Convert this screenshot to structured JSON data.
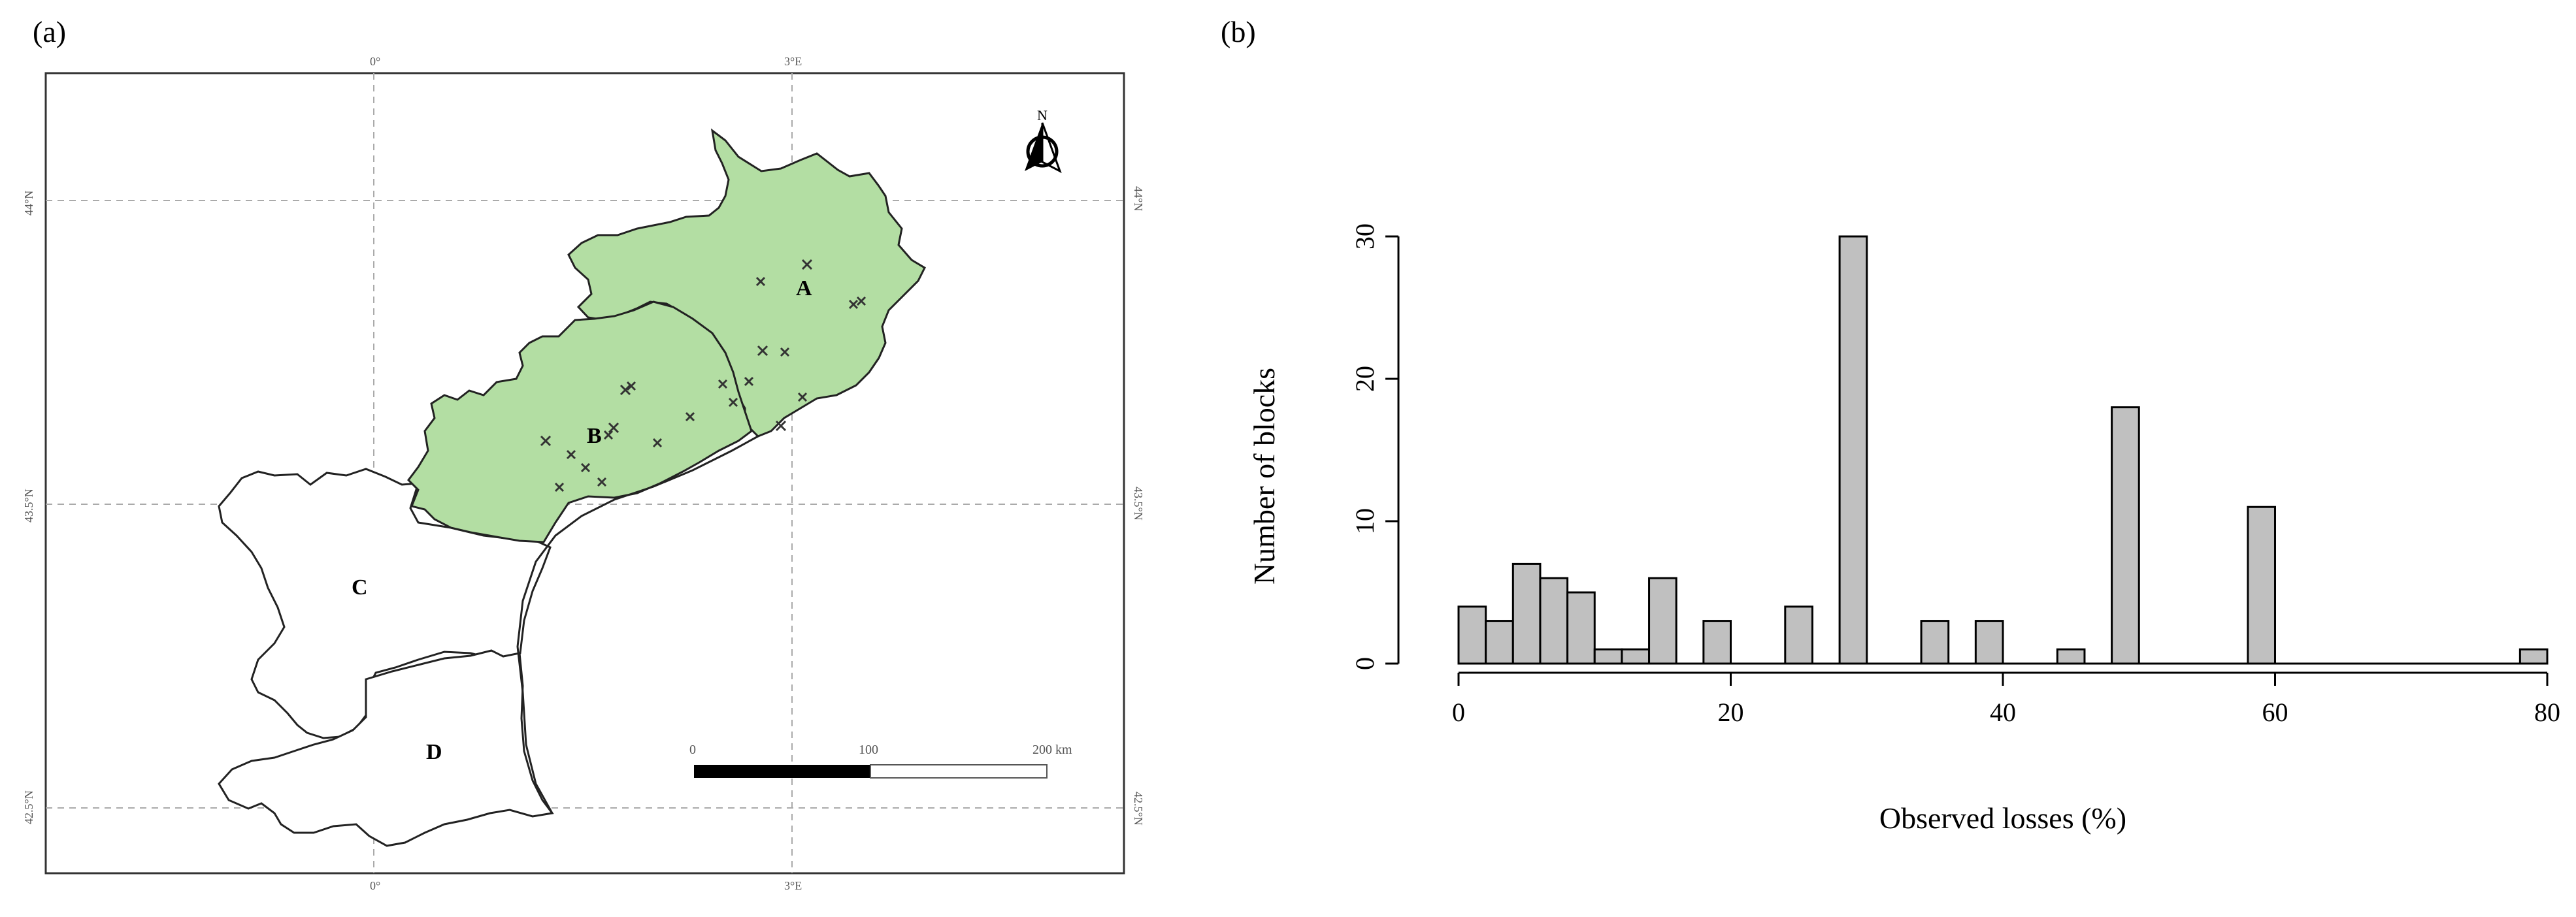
{
  "panels": {
    "a": "(a)",
    "b": "(b)"
  },
  "map": {
    "lon_labels": [
      "0°",
      "3°E"
    ],
    "lat_labels": [
      "44°N",
      "43.5°N",
      "42.5°N"
    ],
    "north_arrow": "N",
    "regions": [
      {
        "label": "A",
        "highlighted": true
      },
      {
        "label": "B",
        "highlighted": true
      },
      {
        "label": "C",
        "highlighted": false
      },
      {
        "label": "D",
        "highlighted": false
      }
    ],
    "scale_bar": {
      "ticks": [
        "0",
        "100",
        "200 km"
      ]
    },
    "colors": {
      "highlight": "#b3dea3",
      "outline": "#222222",
      "grid": "#aaaaaa"
    }
  },
  "chart_data": {
    "type": "bar",
    "title": "",
    "xlabel": "Observed  losses (%)",
    "ylabel": "Number of blocks",
    "xlim": [
      0,
      80
    ],
    "ylim": [
      0,
      30
    ],
    "bin_width": 2,
    "bins": [
      {
        "x0": 0,
        "x1": 2,
        "value": 4
      },
      {
        "x0": 2,
        "x1": 4,
        "value": 3
      },
      {
        "x0": 4,
        "x1": 6,
        "value": 7
      },
      {
        "x0": 6,
        "x1": 8,
        "value": 6
      },
      {
        "x0": 8,
        "x1": 10,
        "value": 5
      },
      {
        "x0": 10,
        "x1": 12,
        "value": 1
      },
      {
        "x0": 12,
        "x1": 14,
        "value": 1
      },
      {
        "x0": 14,
        "x1": 16,
        "value": 6
      },
      {
        "x0": 18,
        "x1": 20,
        "value": 3
      },
      {
        "x0": 24,
        "x1": 26,
        "value": 4
      },
      {
        "x0": 28,
        "x1": 30,
        "value": 30
      },
      {
        "x0": 34,
        "x1": 36,
        "value": 3
      },
      {
        "x0": 38,
        "x1": 40,
        "value": 3
      },
      {
        "x0": 44,
        "x1": 46,
        "value": 1
      },
      {
        "x0": 48,
        "x1": 50,
        "value": 18
      },
      {
        "x0": 58,
        "x1": 60,
        "value": 11
      },
      {
        "x0": 78,
        "x1": 80,
        "value": 1
      }
    ],
    "x_ticks": [
      0,
      20,
      40,
      60,
      80
    ],
    "x_tick_labels": [
      "0",
      "20",
      "40",
      "60",
      "80"
    ],
    "y_ticks": [
      0,
      10,
      20,
      30
    ],
    "y_tick_labels": [
      "0",
      "10",
      "20",
      "30"
    ],
    "bar_color": "#c0c0c0",
    "grid": false
  }
}
